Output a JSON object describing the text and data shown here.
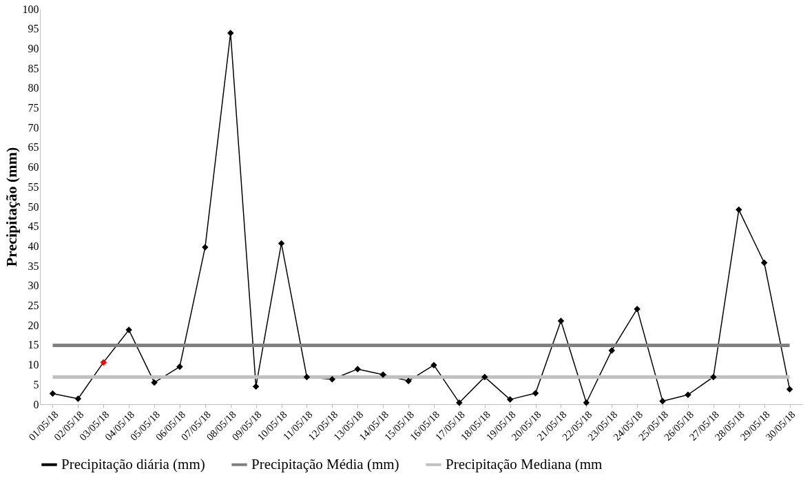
{
  "chart_data": {
    "type": "line",
    "ylabel": "Precipitação (mm)",
    "categories": [
      "01/05/18",
      "02/05/18",
      "03/05/18",
      "04/05/18",
      "05/05/18",
      "06/05/18",
      "07/05/18",
      "08/05/18",
      "09/05/18",
      "10/05/18",
      "11/05/18",
      "12/05/18",
      "13/05/18",
      "14/05/18",
      "15/05/18",
      "16/05/18",
      "17/05/18",
      "18/05/18",
      "19/05/18",
      "20/05/18",
      "21/05/18",
      "22/05/18",
      "23/05/18",
      "24/05/18",
      "25/05/18",
      "26/05/18",
      "27/05/18",
      "28/05/18",
      "29/05/18",
      "30/05/18"
    ],
    "series": [
      {
        "name": "Precipitação diária (mm)",
        "color": "#000000",
        "marker": "diamond",
        "colors": [
          "#000000",
          "#000000",
          "#ff0000",
          "#000000",
          "#000000",
          "#000000",
          "#000000",
          "#000000",
          "#000000",
          "#000000",
          "#000000",
          "#000000",
          "#000000",
          "#000000",
          "#000000",
          "#000000",
          "#000000",
          "#000000",
          "#000000",
          "#000000",
          "#000000",
          "#000000",
          "#000000",
          "#000000",
          "#000000",
          "#000000",
          "#000000",
          "#000000",
          "#000000",
          "#000000"
        ],
        "values": [
          2.7,
          1.4,
          10.6,
          18.8,
          5.5,
          9.5,
          39.7,
          93.9,
          4.5,
          40.7,
          6.9,
          6.3,
          8.9,
          7.5,
          5.9,
          9.9,
          0.4,
          6.9,
          1.2,
          2.8,
          21.1,
          0.4,
          13.6,
          24.1,
          0.8,
          2.4,
          6.9,
          49.2,
          35.8,
          3.8
        ]
      },
      {
        "name": "Precipitação Média (mm)",
        "color": "#808080",
        "marker": "none",
        "values": [
          14.9,
          14.9,
          14.9,
          14.9,
          14.9,
          14.9,
          14.9,
          14.9,
          14.9,
          14.9,
          14.9,
          14.9,
          14.9,
          14.9,
          14.9,
          14.9,
          14.9,
          14.9,
          14.9,
          14.9,
          14.9,
          14.9,
          14.9,
          14.9,
          14.9,
          14.9,
          14.9,
          14.9,
          14.9,
          14.9
        ]
      },
      {
        "name": "Precipitação Mediana (mm",
        "color": "#c0c0c0",
        "marker": "none",
        "values": [
          6.9,
          6.9,
          6.9,
          6.9,
          6.9,
          6.9,
          6.9,
          6.9,
          6.9,
          6.9,
          6.9,
          6.9,
          6.9,
          6.9,
          6.9,
          6.9,
          6.9,
          6.9,
          6.9,
          6.9,
          6.9,
          6.9,
          6.9,
          6.9,
          6.9,
          6.9,
          6.9,
          6.9,
          6.9,
          6.9
        ]
      }
    ],
    "ylim": [
      0,
      100
    ],
    "yticks": [
      0,
      5,
      10,
      15,
      20,
      25,
      30,
      35,
      40,
      45,
      50,
      55,
      60,
      65,
      70,
      75,
      80,
      85,
      90,
      95,
      100
    ],
    "grid": false,
    "legend": "bottom"
  }
}
